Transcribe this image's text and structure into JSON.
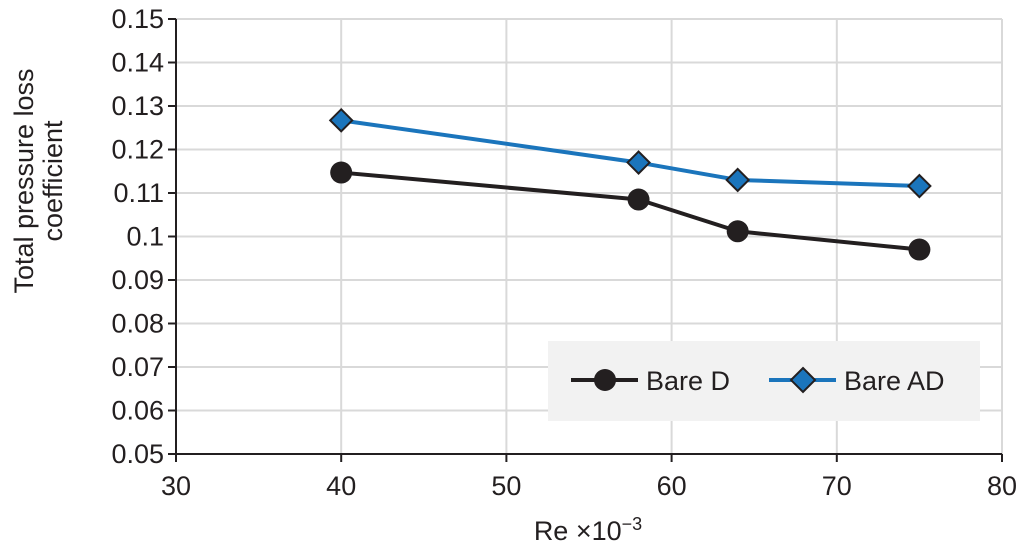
{
  "chart_data": {
    "type": "line",
    "xlabel": "Re ×10",
    "xlabel_exponent": "−3",
    "ylabel_lines": [
      "Total pressure loss",
      "coefficient"
    ],
    "xlim": [
      30,
      80
    ],
    "ylim": [
      0.05,
      0.15
    ],
    "x_ticks": [
      30,
      40,
      50,
      60,
      70,
      80
    ],
    "x_tick_labels": [
      "30",
      "40",
      "50",
      "60",
      "70",
      "80"
    ],
    "y_ticks": [
      0.05,
      0.06,
      0.07,
      0.08,
      0.09,
      0.1,
      0.11,
      0.12,
      0.13,
      0.14,
      0.15
    ],
    "y_tick_labels": [
      "0.05",
      "0.06",
      "0.07",
      "0.08",
      "0.09",
      "0.1",
      "0.11",
      "0.12",
      "0.13",
      "0.14",
      "0.15"
    ],
    "grid": true,
    "legend_position": "bottom-right",
    "series": [
      {
        "name": "Bare D",
        "marker": "circle",
        "color": "#231f20",
        "x": [
          40,
          58,
          64,
          75
        ],
        "y": [
          0.1147,
          0.1085,
          0.1012,
          0.097
        ]
      },
      {
        "name": "Bare AD",
        "marker": "diamond",
        "color": "#1b75bc",
        "x": [
          40,
          58,
          64,
          75
        ],
        "y": [
          0.1267,
          0.117,
          0.113,
          0.1116
        ]
      }
    ]
  }
}
